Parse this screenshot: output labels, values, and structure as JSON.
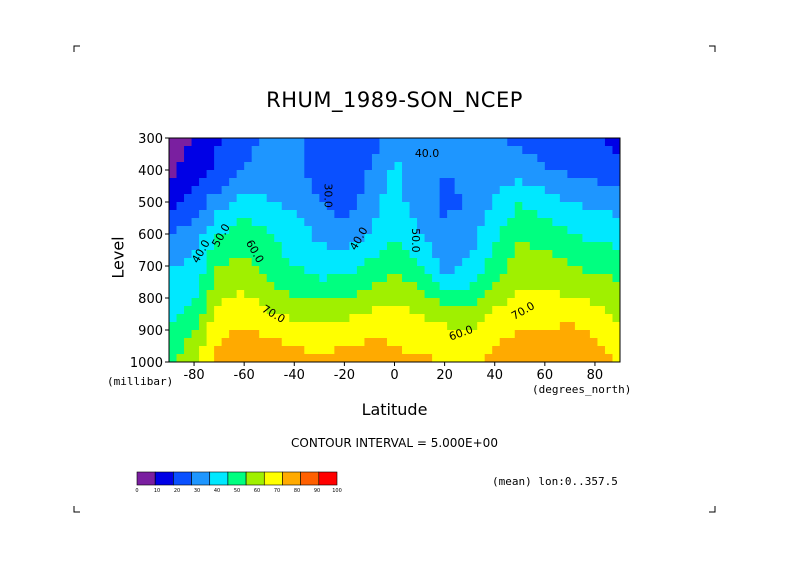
{
  "chart_data": {
    "type": "heatmap",
    "title": "RHUM_1989-SON_NCEP",
    "xlabel": "Latitude",
    "xunit": "(degrees_north)",
    "ylabel": "Level",
    "yunit": "(millibar)",
    "xlim": [
      -90,
      90
    ],
    "ylim": [
      1000,
      300
    ],
    "xticks": [
      "-80",
      "-60",
      "-40",
      "-20",
      "0",
      "20",
      "40",
      "60",
      "80"
    ],
    "yticks": [
      "300",
      "400",
      "500",
      "600",
      "700",
      "800",
      "900",
      "1000"
    ],
    "x": [
      -90,
      -80,
      -70,
      -60,
      -50,
      -40,
      -30,
      -20,
      -10,
      0,
      10,
      20,
      30,
      40,
      50,
      60,
      70,
      80,
      90
    ],
    "y": [
      300,
      400,
      500,
      600,
      700,
      800,
      900,
      1000
    ],
    "values": [
      [
        5,
        10,
        20,
        28,
        30,
        30,
        30,
        25,
        25,
        35,
        40,
        38,
        35,
        30,
        28,
        25,
        22,
        20,
        18
      ],
      [
        8,
        15,
        22,
        30,
        35,
        33,
        25,
        22,
        30,
        42,
        35,
        30,
        33,
        38,
        35,
        30,
        28,
        25,
        22
      ],
      [
        15,
        25,
        35,
        45,
        40,
        38,
        30,
        25,
        35,
        45,
        33,
        28,
        30,
        40,
        50,
        45,
        40,
        38,
        35
      ],
      [
        30,
        35,
        50,
        55,
        50,
        45,
        38,
        35,
        40,
        50,
        40,
        32,
        35,
        48,
        58,
        55,
        50,
        48,
        45
      ],
      [
        40,
        42,
        60,
        62,
        55,
        50,
        45,
        45,
        52,
        58,
        52,
        35,
        42,
        55,
        65,
        65,
        60,
        58,
        55
      ],
      [
        45,
        48,
        70,
        72,
        65,
        60,
        58,
        60,
        65,
        68,
        65,
        55,
        55,
        65,
        72,
        72,
        70,
        68,
        65
      ],
      [
        50,
        60,
        78,
        80,
        78,
        75,
        72,
        75,
        78,
        78,
        75,
        72,
        70,
        78,
        80,
        80,
        82,
        78,
        70
      ],
      [
        55,
        70,
        85,
        88,
        88,
        85,
        82,
        85,
        85,
        82,
        82,
        80,
        80,
        82,
        85,
        88,
        88,
        85,
        80
      ]
    ],
    "contour_interval": "CONTOUR INTERVAL = 5.000E+00",
    "contour_labels": [
      "30.0",
      "40.0",
      "40.0",
      "40.0",
      "50.0",
      "50.0",
      "60.0",
      "60.0",
      "70.0",
      "70.0"
    ],
    "levels": [
      0,
      10,
      20,
      30,
      40,
      50,
      60,
      70,
      80,
      90,
      100
    ],
    "colorbar": {
      "labels": [
        "0",
        "10",
        "20",
        "30",
        "40",
        "50",
        "60",
        "70",
        "80",
        "90",
        "100"
      ],
      "colors": [
        "#7a1fa0",
        "#0000e6",
        "#0a50ff",
        "#1e96ff",
        "#00e8ff",
        "#00ff80",
        "#a0f000",
        "#ffff00",
        "#ffaa00",
        "#ff6000",
        "#ff0000"
      ]
    },
    "annotation": "(mean) lon:0..357.5",
    "grid": false
  }
}
